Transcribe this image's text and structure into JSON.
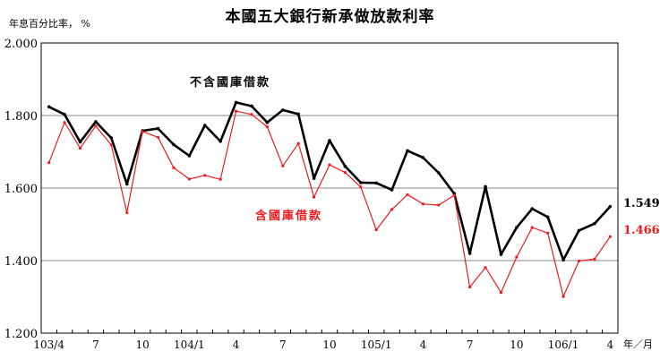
{
  "chart_data": {
    "type": "line",
    "title": "本國五大銀行新承做放款利率",
    "ylabel": "年息百分比率， %",
    "xlabel": "年／月",
    "ylim": [
      1.2,
      2.0
    ],
    "yticks": [
      "1.200",
      "1.400",
      "1.600",
      "1.800",
      "2.000"
    ],
    "ytick_values": [
      1.2,
      1.4,
      1.6,
      1.8,
      2.0
    ],
    "grid": true,
    "x": [
      "103/4",
      "103/5",
      "103/6",
      "103/7",
      "103/8",
      "103/9",
      "103/10",
      "103/11",
      "103/12",
      "104/1",
      "104/2",
      "104/3",
      "104/4",
      "104/5",
      "104/6",
      "104/7",
      "104/8",
      "104/9",
      "104/10",
      "104/11",
      "104/12",
      "105/1",
      "105/2",
      "105/3",
      "105/4",
      "105/5",
      "105/6",
      "105/7",
      "105/8",
      "105/9",
      "105/10",
      "105/11",
      "105/12",
      "106/1",
      "106/2",
      "106/3",
      "106/4"
    ],
    "xtick_labels": [
      {
        "index": 0,
        "label": "103/4"
      },
      {
        "index": 3,
        "label": "7"
      },
      {
        "index": 6,
        "label": "10"
      },
      {
        "index": 9,
        "label": "104/1"
      },
      {
        "index": 12,
        "label": "4"
      },
      {
        "index": 15,
        "label": "7"
      },
      {
        "index": 18,
        "label": "10"
      },
      {
        "index": 21,
        "label": "105/1"
      },
      {
        "index": 24,
        "label": "4"
      },
      {
        "index": 27,
        "label": "7"
      },
      {
        "index": 30,
        "label": "10"
      },
      {
        "index": 33,
        "label": "106/1"
      },
      {
        "index": 36,
        "label": "4"
      }
    ],
    "series": [
      {
        "name": "不含國庫借款",
        "color": "#000000",
        "end_label": "1.549",
        "values": [
          1.824,
          1.803,
          1.727,
          1.783,
          1.738,
          1.611,
          1.758,
          1.764,
          1.72,
          1.689,
          1.773,
          1.729,
          1.836,
          1.826,
          1.781,
          1.815,
          1.804,
          1.627,
          1.731,
          1.66,
          1.615,
          1.614,
          1.595,
          1.703,
          1.684,
          1.642,
          1.585,
          1.42,
          1.604,
          1.417,
          1.491,
          1.543,
          1.52,
          1.402,
          1.483,
          1.502,
          1.549
        ]
      },
      {
        "name": "含國庫借款",
        "color": "#ee1c1c",
        "end_label": "1.466",
        "values": [
          1.67,
          1.781,
          1.71,
          1.771,
          1.719,
          1.532,
          1.756,
          1.74,
          1.656,
          1.625,
          1.635,
          1.624,
          1.812,
          1.803,
          1.769,
          1.661,
          1.723,
          1.575,
          1.664,
          1.643,
          1.603,
          1.485,
          1.541,
          1.582,
          1.556,
          1.553,
          1.58,
          1.327,
          1.381,
          1.312,
          1.41,
          1.491,
          1.476,
          1.301,
          1.399,
          1.404,
          1.466
        ]
      }
    ]
  }
}
